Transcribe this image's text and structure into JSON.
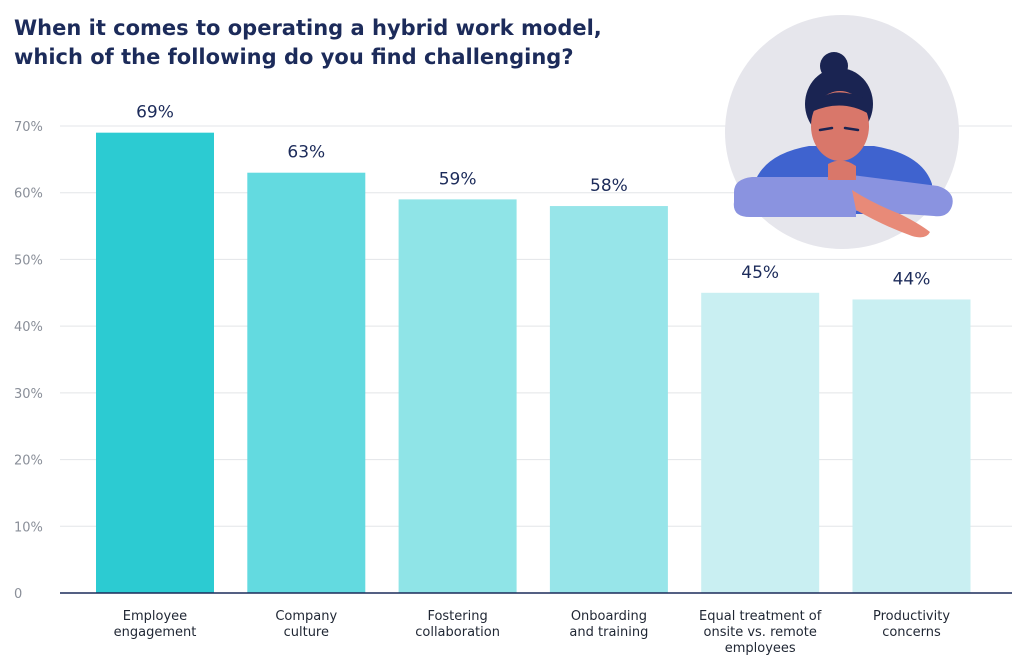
{
  "title_lines": [
    "When it comes to operating a hybrid work model,",
    "which of the following do you find challenging?"
  ],
  "colors": {
    "title": "#1c2b5a",
    "axis_text": "#8a8f99",
    "grid": "#e3e5e8",
    "baseline": "#1c2b5a",
    "bars": [
      "#2ccbd2",
      "#63dae0",
      "#8fe4e7",
      "#97e5e9",
      "#c9eff2",
      "#c9eff2"
    ]
  },
  "chart_data": {
    "type": "bar",
    "title": "When it comes to operating a hybrid work model, which of the following do you find challenging?",
    "categories": [
      [
        "Employee",
        "engagement"
      ],
      [
        "Company",
        "culture"
      ],
      [
        "Fostering",
        "collaboration"
      ],
      [
        "Onboarding",
        "and training"
      ],
      [
        "Equal treatment of",
        "onsite vs. remote",
        "employees"
      ],
      [
        "Productivity",
        "concerns"
      ]
    ],
    "values": [
      69,
      63,
      59,
      58,
      45,
      44
    ],
    "value_labels": [
      "69%",
      "63%",
      "59%",
      "58%",
      "45%",
      "44%"
    ],
    "ylim": [
      0,
      70
    ],
    "yticks": [
      0,
      10,
      20,
      30,
      40,
      50,
      60,
      70
    ],
    "ytick_labels": [
      "0",
      "10%",
      "20%",
      "30%",
      "40%",
      "50%",
      "60%",
      "70%"
    ],
    "grid": true,
    "xlabel": "",
    "ylabel": ""
  },
  "illustration": {
    "icon": "thinking-woman-illustration"
  }
}
